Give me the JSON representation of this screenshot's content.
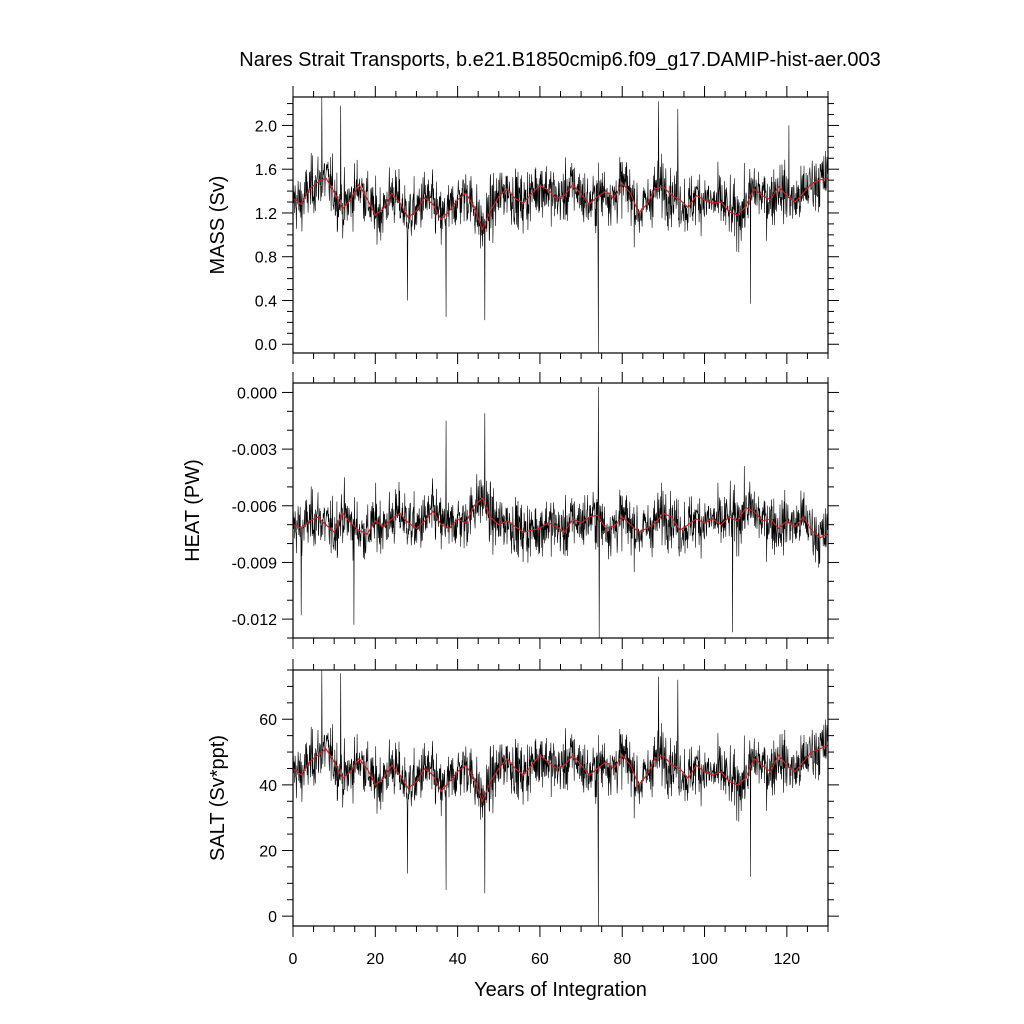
{
  "title": "Nares Strait Transports, b.e21.B1850cmip6.f09_g17.DAMIP-hist-aer.003",
  "colors": {
    "raw": "#000000",
    "smooth": "#cc2222",
    "frame": "#000000"
  },
  "chart_data": [
    {
      "type": "line",
      "ylabel": "MASS (Sv)",
      "xlabel": "",
      "xlim": [
        0,
        130
      ],
      "ylim": [
        -0.08,
        2.26
      ],
      "xticks": [
        0,
        20,
        40,
        60,
        80,
        100,
        120
      ],
      "yticks": [
        0.0,
        0.4,
        0.8,
        1.2,
        1.6,
        2.0
      ],
      "ytick_labels": [
        "0.0",
        "0.4",
        "0.8",
        "1.2",
        "1.6",
        "2.0"
      ],
      "yminor_step": 0.1,
      "grid": false,
      "series": [
        {
          "role": "monthly",
          "color": "#000000",
          "mean": 1.33,
          "spread": 0.23,
          "notable_extremes": [
            {
              "x": 74.2,
              "y": -0.08
            },
            {
              "x": 37.2,
              "y": 0.25
            },
            {
              "x": 46.6,
              "y": 0.22
            },
            {
              "x": 27.8,
              "y": 0.4
            },
            {
              "x": 111.2,
              "y": 0.37
            },
            {
              "x": 7.0,
              "y": 2.26
            },
            {
              "x": 11.6,
              "y": 2.18
            },
            {
              "x": 88.8,
              "y": 2.22
            },
            {
              "x": 93.5,
              "y": 2.15
            },
            {
              "x": 120.5,
              "y": 2.0
            }
          ]
        },
        {
          "role": "annual-smooth",
          "color": "#cc2222",
          "x": [
            0,
            2,
            4,
            6,
            8,
            10,
            12,
            14,
            16,
            18,
            20,
            22,
            24,
            26,
            28,
            30,
            32,
            34,
            36,
            38,
            40,
            42,
            44,
            46,
            48,
            50,
            52,
            54,
            56,
            58,
            60,
            62,
            64,
            66,
            68,
            70,
            72,
            74,
            76,
            78,
            80,
            82,
            84,
            86,
            88,
            90,
            92,
            94,
            96,
            98,
            100,
            102,
            104,
            106,
            108,
            110,
            112,
            114,
            116,
            118,
            120,
            122,
            124,
            126,
            128,
            130
          ],
          "y": [
            1.33,
            1.28,
            1.42,
            1.48,
            1.52,
            1.39,
            1.24,
            1.32,
            1.46,
            1.33,
            1.18,
            1.24,
            1.38,
            1.29,
            1.16,
            1.22,
            1.34,
            1.28,
            1.14,
            1.22,
            1.32,
            1.38,
            1.26,
            1.05,
            1.22,
            1.35,
            1.42,
            1.33,
            1.29,
            1.38,
            1.45,
            1.41,
            1.33,
            1.36,
            1.46,
            1.37,
            1.28,
            1.35,
            1.4,
            1.33,
            1.47,
            1.38,
            1.2,
            1.28,
            1.42,
            1.44,
            1.36,
            1.32,
            1.25,
            1.36,
            1.32,
            1.29,
            1.3,
            1.21,
            1.18,
            1.26,
            1.42,
            1.36,
            1.32,
            1.44,
            1.36,
            1.3,
            1.38,
            1.47,
            1.5,
            1.52
          ]
        }
      ]
    },
    {
      "type": "line",
      "ylabel": "HEAT (PW)",
      "xlabel": "",
      "xlim": [
        0,
        130
      ],
      "ylim": [
        -0.013,
        0.0005
      ],
      "xticks": [
        0,
        20,
        40,
        60,
        80,
        100,
        120
      ],
      "yticks": [
        0.0,
        -0.003,
        -0.006,
        -0.009,
        -0.012
      ],
      "ytick_labels": [
        "0.000",
        "-0.003",
        "-0.006",
        "-0.009",
        "-0.012"
      ],
      "yminor_step": 0.001,
      "grid": false,
      "series": [
        {
          "role": "monthly",
          "color": "#000000",
          "mean": -0.0071,
          "spread": 0.0013,
          "notable_extremes": [
            {
              "x": 74.2,
              "y": 0.0003
            },
            {
              "x": 74.4,
              "y": -0.013
            },
            {
              "x": 46.6,
              "y": -0.0011
            },
            {
              "x": 37.2,
              "y": -0.0015
            },
            {
              "x": 106.8,
              "y": -0.0127
            },
            {
              "x": 14.8,
              "y": -0.0123
            },
            {
              "x": 2.0,
              "y": -0.0118
            }
          ]
        },
        {
          "role": "annual-smooth",
          "color": "#cc2222",
          "x": [
            0,
            2,
            4,
            6,
            8,
            10,
            12,
            14,
            16,
            18,
            20,
            22,
            24,
            26,
            28,
            30,
            32,
            34,
            36,
            38,
            40,
            42,
            44,
            46,
            48,
            50,
            52,
            54,
            56,
            58,
            60,
            62,
            64,
            66,
            68,
            70,
            72,
            74,
            76,
            78,
            80,
            82,
            84,
            86,
            88,
            90,
            92,
            94,
            96,
            98,
            100,
            102,
            104,
            106,
            108,
            110,
            112,
            114,
            116,
            118,
            120,
            122,
            124,
            126,
            128,
            130
          ],
          "y": [
            -0.007,
            -0.0072,
            -0.0068,
            -0.0066,
            -0.007,
            -0.0074,
            -0.0064,
            -0.0069,
            -0.0073,
            -0.0075,
            -0.0068,
            -0.0071,
            -0.0067,
            -0.0064,
            -0.0069,
            -0.0072,
            -0.0068,
            -0.0063,
            -0.007,
            -0.0072,
            -0.0067,
            -0.0069,
            -0.006,
            -0.0056,
            -0.0066,
            -0.007,
            -0.0068,
            -0.0071,
            -0.0074,
            -0.0073,
            -0.0072,
            -0.0069,
            -0.0071,
            -0.0074,
            -0.0067,
            -0.0069,
            -0.0066,
            -0.0065,
            -0.0072,
            -0.0071,
            -0.0066,
            -0.007,
            -0.0074,
            -0.0072,
            -0.0069,
            -0.0064,
            -0.0066,
            -0.0073,
            -0.007,
            -0.0067,
            -0.0069,
            -0.0067,
            -0.007,
            -0.0066,
            -0.0068,
            -0.0061,
            -0.0063,
            -0.0068,
            -0.0067,
            -0.0072,
            -0.0068,
            -0.0071,
            -0.0066,
            -0.0073,
            -0.0077,
            -0.0075
          ]
        }
      ]
    },
    {
      "type": "line",
      "ylabel": "SALT (Sv*ppt)",
      "xlabel": "Years of Integration",
      "xlim": [
        0,
        130
      ],
      "ylim": [
        -3,
        75
      ],
      "xticks": [
        0,
        20,
        40,
        60,
        80,
        100,
        120
      ],
      "yticks": [
        0,
        20,
        40,
        60
      ],
      "ytick_labels": [
        "0",
        "20",
        "40",
        "60"
      ],
      "yminor_step": 5,
      "grid": false,
      "series": [
        {
          "role": "monthly",
          "color": "#000000",
          "mean": 45,
          "spread": 7.5,
          "notable_extremes": [
            {
              "x": 74.2,
              "y": -3
            },
            {
              "x": 37.2,
              "y": 8
            },
            {
              "x": 46.6,
              "y": 7
            },
            {
              "x": 27.8,
              "y": 13
            },
            {
              "x": 111.2,
              "y": 12
            },
            {
              "x": 7.0,
              "y": 75
            },
            {
              "x": 11.6,
              "y": 74
            },
            {
              "x": 88.8,
              "y": 73
            },
            {
              "x": 93.5,
              "y": 72
            }
          ]
        },
        {
          "role": "annual-smooth",
          "color": "#cc2222",
          "x": [
            0,
            2,
            4,
            6,
            8,
            10,
            12,
            14,
            16,
            18,
            20,
            22,
            24,
            26,
            28,
            30,
            32,
            34,
            36,
            38,
            40,
            42,
            44,
            46,
            48,
            50,
            52,
            54,
            56,
            58,
            60,
            62,
            64,
            66,
            68,
            70,
            72,
            74,
            76,
            78,
            80,
            82,
            84,
            86,
            88,
            90,
            92,
            94,
            96,
            98,
            100,
            102,
            104,
            106,
            108,
            110,
            112,
            114,
            116,
            118,
            120,
            122,
            124,
            126,
            128,
            130
          ],
          "y": [
            45,
            43,
            47,
            49,
            51,
            47,
            42,
            44,
            48,
            45,
            40,
            42,
            46,
            43,
            39,
            41,
            45,
            43,
            38,
            41,
            44,
            46,
            42,
            35,
            41,
            45,
            48,
            45,
            43,
            46,
            49,
            47,
            45,
            46,
            49,
            46,
            43,
            45,
            47,
            45,
            49,
            46,
            40,
            43,
            48,
            49,
            46,
            45,
            42,
            46,
            44,
            43,
            44,
            41,
            40,
            42,
            48,
            46,
            44,
            49,
            46,
            44,
            47,
            50,
            51,
            52
          ]
        }
      ]
    }
  ]
}
